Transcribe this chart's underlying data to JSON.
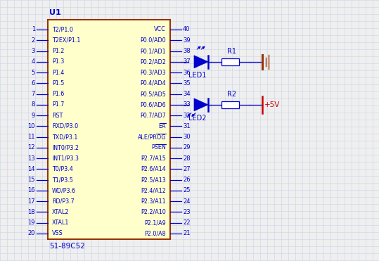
{
  "bg_color": "#efefef",
  "grid_color": "#c8d4e8",
  "chip_color": "#ffffcc",
  "chip_border_color": "#993300",
  "line_color": "#0000cc",
  "text_color": "#0000cc",
  "red_color": "#cc0000",
  "left_pins": [
    [
      "1",
      "T2/P1.0"
    ],
    [
      "2",
      "T2EX/P1.1"
    ],
    [
      "3",
      "P1.2"
    ],
    [
      "4",
      "P1.3"
    ],
    [
      "5",
      "P1.4"
    ],
    [
      "6",
      "P1.5"
    ],
    [
      "7",
      "P1.6"
    ],
    [
      "8",
      "P1.7"
    ],
    [
      "9",
      "RST"
    ],
    [
      "10",
      "RXD/P3.0"
    ],
    [
      "11",
      "TXD/P3.1"
    ],
    [
      "12",
      "INT0/P3.2"
    ],
    [
      "13",
      "INT1/P3.3"
    ],
    [
      "14",
      "T0/P3.4"
    ],
    [
      "15",
      "T1/P3.5"
    ],
    [
      "16",
      "WD/P3.6"
    ],
    [
      "17",
      "RD/P3.7"
    ],
    [
      "18",
      "XTAL2"
    ],
    [
      "19",
      "XTAL1"
    ],
    [
      "20",
      "VSS"
    ]
  ],
  "right_pins": [
    [
      "40",
      "VCC"
    ],
    [
      "39",
      "P0.0/AD0"
    ],
    [
      "38",
      "P0.1/AD1"
    ],
    [
      "37",
      "P0.2/AD2"
    ],
    [
      "36",
      "P0.3/AD3"
    ],
    [
      "35",
      "P0.4/AD4"
    ],
    [
      "34",
      "P0.5/AD5"
    ],
    [
      "33",
      "P0.6/AD6"
    ],
    [
      "32",
      "P0.7/AD7"
    ],
    [
      "31",
      "EA"
    ],
    [
      "30",
      "ALE/PROG"
    ],
    [
      "29",
      "PSEN"
    ],
    [
      "28",
      "P2.7/A15"
    ],
    [
      "27",
      "P2.6/A14"
    ],
    [
      "26",
      "P2.5/A13"
    ],
    [
      "25",
      "P2.4/A12"
    ],
    [
      "24",
      "P2.3/A11"
    ],
    [
      "23",
      "P2.2/A10"
    ],
    [
      "22",
      "P2.1/A9"
    ],
    [
      "21",
      "P2.0/A8"
    ]
  ],
  "overline_pins_exact": [
    "EA",
    "ALE/PROG",
    "PSEN"
  ],
  "chip_label": "U1",
  "chip_sublabel": "51-89C52",
  "led1_label": "LED1",
  "led2_label": "LED2",
  "r1_label": "R1",
  "r2_label": "R2",
  "supply_label": "+5V"
}
